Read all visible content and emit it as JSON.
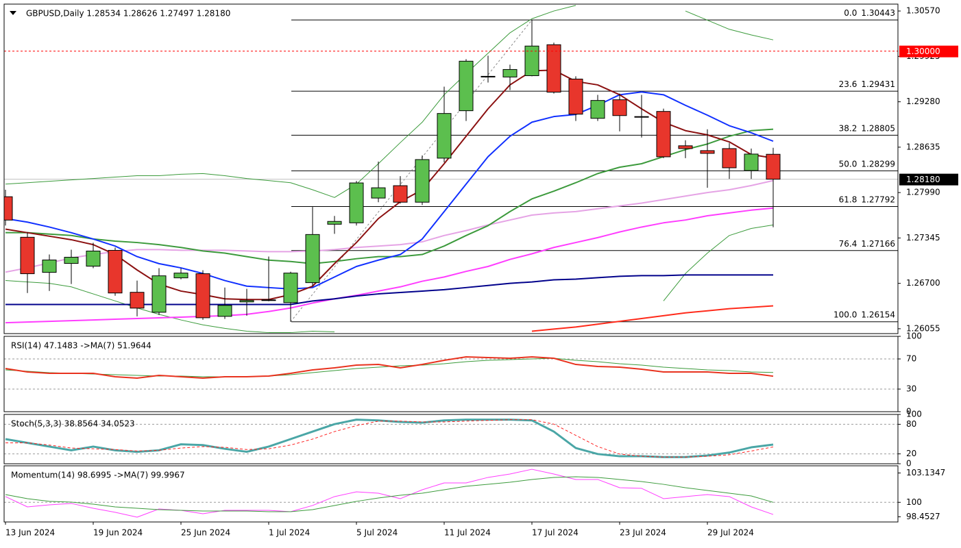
{
  "chart_data": [
    {
      "type": "candlestick",
      "title": "GBPUSD,Daily  1.28534 1.28626 1.27497 1.28180",
      "categories": [
        "13 Jun 2024",
        null,
        null,
        null,
        "19 Jun 2024",
        null,
        null,
        null,
        "25 Jun 2024",
        null,
        null,
        null,
        "1 Jul 2024",
        null,
        null,
        null,
        "5 Jul 2024",
        null,
        null,
        null,
        "11 Jul 2024",
        null,
        null,
        null,
        "17 Jul 2024",
        null,
        null,
        null,
        "23 Jul 2024",
        null,
        null,
        null,
        "29 Jul 2024",
        null,
        null,
        null
      ],
      "open": [
        1.27931,
        1.27355,
        1.26856,
        1.26983,
        1.26944,
        1.27169,
        1.26573,
        1.26289,
        1.26778,
        1.26837,
        1.26231,
        1.26436,
        1.26456,
        1.26426,
        1.2671,
        1.2754,
        1.2756,
        1.27912,
        1.28088,
        1.27853,
        1.28479,
        1.29153,
        1.29632,
        1.29632,
        1.29651,
        1.30091,
        1.29603,
        1.29045,
        1.29309,
        1.2907,
        1.29143,
        1.28655,
        1.28586,
        1.28615,
        1.28303,
        1.28534
      ],
      "high": [
        1.2803,
        1.27423,
        1.2711,
        1.27179,
        1.27277,
        1.27208,
        1.26739,
        1.26915,
        1.26915,
        1.26886,
        1.26641,
        1.26622,
        1.27081,
        1.26866,
        1.27785,
        1.27658,
        1.28156,
        1.2843,
        1.28224,
        1.28518,
        1.29495,
        1.29886,
        1.29935,
        1.29808,
        1.30443,
        1.3012,
        1.29642,
        1.29378,
        1.29397,
        1.29378,
        1.29182,
        1.28733,
        1.28889,
        1.28694,
        1.28615,
        1.28626
      ],
      "low": [
        1.27521,
        1.26563,
        1.26592,
        1.2669,
        1.26915,
        1.26524,
        1.26231,
        1.2625,
        1.26758,
        1.26182,
        1.26194,
        1.2624,
        1.26446,
        1.26154,
        1.26661,
        1.27403,
        1.27521,
        1.27853,
        1.27834,
        1.27814,
        1.2842,
        1.29007,
        1.29554,
        1.29446,
        1.29642,
        1.29397,
        1.29007,
        1.29007,
        1.2886,
        1.28772,
        1.28479,
        1.28479,
        1.28058,
        1.28185,
        1.28185,
        1.27497
      ],
      "close": [
        1.27599,
        1.26837,
        1.27032,
        1.27071,
        1.27159,
        1.26563,
        1.26348,
        1.26807,
        1.26846,
        1.26211,
        1.26387,
        1.26456,
        1.26465,
        1.26846,
        1.27394,
        1.2758,
        1.28127,
        1.28058,
        1.27853,
        1.28459,
        1.29114,
        1.29857,
        1.29642,
        1.29739,
        1.30072,
        1.29417,
        1.29104,
        1.29299,
        1.29084,
        1.2906,
        1.28498,
        1.28615,
        1.28547,
        1.28342,
        1.28537,
        1.2818
      ],
      "up_color": "#5cbf4e",
      "down_color": "#e8362c",
      "series": [
        {
          "color": "#3a9a3a",
          "width": 1,
          "values": [
            1.2811,
            1.2813,
            1.2815,
            1.2817,
            1.2819,
            1.2821,
            1.2823,
            1.2823,
            1.2825,
            1.2826,
            1.2823,
            1.2819,
            1.2816,
            1.2813,
            1.2803,
            1.2792,
            1.2811,
            1.284,
            1.287,
            1.2899,
            1.2938,
            1.2968,
            1.2997,
            1.3026,
            1.3046,
            1.3057,
            1.3065,
            null,
            null,
            null,
            null,
            1.3057,
            1.3044,
            1.3031,
            1.3023,
            1.3016
          ]
        },
        {
          "color": "#3a9a3a",
          "width": 1,
          "values": [
            1.2674,
            1.2672,
            1.267,
            1.2665,
            1.2655,
            1.2645,
            1.2635,
            1.2626,
            1.2618,
            1.2611,
            1.2606,
            1.2602,
            1.26,
            1.26,
            1.2602,
            1.2601,
            null,
            null,
            null,
            null,
            null,
            null,
            null,
            null,
            null,
            null,
            null,
            null,
            null,
            null,
            1.2645,
            1.2684,
            1.2713,
            1.2738,
            1.2748,
            1.2753
          ]
        },
        {
          "color": "#e5a3e5",
          "width": 2,
          "values": [
            1.2686,
            1.2692,
            1.2699,
            1.2706,
            1.2711,
            1.2715,
            1.2718,
            1.2718,
            1.2717,
            1.2717,
            1.2717,
            1.2716,
            1.2715,
            1.2715,
            1.2716,
            1.2718,
            1.2721,
            1.2723,
            1.2725,
            1.2729,
            1.2738,
            1.2745,
            1.2753,
            1.276,
            1.2767,
            1.277,
            1.2772,
            1.2776,
            1.278,
            1.2784,
            1.2789,
            1.2794,
            1.2799,
            1.2803,
            1.2809,
            1.2816
          ]
        },
        {
          "color": "#ff3cff",
          "width": 2,
          "values": [
            1.2614,
            1.2615,
            1.2616,
            1.2617,
            1.2618,
            1.2619,
            1.262,
            1.2621,
            1.2622,
            1.2623,
            1.2624,
            1.2626,
            1.263,
            1.2635,
            1.2642,
            1.2648,
            1.2653,
            1.2659,
            1.2665,
            1.2673,
            1.2679,
            1.2687,
            1.2694,
            1.2704,
            1.2712,
            1.2721,
            1.2728,
            1.2735,
            1.2743,
            1.275,
            1.2756,
            1.276,
            1.2766,
            1.277,
            1.2774,
            1.2777
          ]
        },
        {
          "color": "#00008b",
          "width": 2,
          "values": [
            1.264,
            1.264,
            1.264,
            1.264,
            1.264,
            1.264,
            1.264,
            1.264,
            1.264,
            1.264,
            1.264,
            1.264,
            1.264,
            1.264,
            1.2645,
            1.2648,
            1.2652,
            1.2655,
            1.2657,
            1.2659,
            1.2661,
            1.2664,
            1.2667,
            1.267,
            1.2672,
            1.2675,
            1.2676,
            1.2678,
            1.268,
            1.2681,
            1.2681,
            1.2682,
            1.2682,
            1.2682,
            1.2682,
            1.2682
          ]
        },
        {
          "color": "#ff2a1a",
          "width": 2,
          "values": [
            null,
            null,
            null,
            null,
            null,
            null,
            null,
            null,
            null,
            null,
            null,
            null,
            null,
            null,
            null,
            null,
            null,
            null,
            null,
            null,
            null,
            null,
            null,
            null,
            1.2602,
            1.2605,
            1.2608,
            1.2612,
            1.2616,
            1.262,
            1.2624,
            1.2628,
            1.2631,
            1.2634,
            1.2636,
            1.2638
          ]
        },
        {
          "color": "#3c9a3c",
          "width": 2,
          "values": [
            1.2742,
            1.2742,
            1.274,
            1.2738,
            1.2733,
            1.273,
            1.2728,
            1.2725,
            1.2721,
            1.2716,
            1.2713,
            1.2708,
            1.2703,
            1.2701,
            1.2698,
            1.2701,
            1.2705,
            1.2708,
            1.2708,
            1.2711,
            1.2723,
            1.2738,
            1.2752,
            1.2772,
            1.279,
            1.2801,
            1.2813,
            1.2826,
            1.2835,
            1.284,
            1.285,
            1.286,
            1.2868,
            1.2879,
            1.2887,
            1.2889
          ]
        },
        {
          "color": "#1030ff",
          "width": 2,
          "values": [
            1.2762,
            1.2757,
            1.275,
            1.2742,
            1.2733,
            1.2723,
            1.2708,
            1.2698,
            1.2692,
            1.2684,
            1.2674,
            1.2666,
            1.2664,
            1.2662,
            1.2664,
            1.2679,
            1.2694,
            1.2703,
            1.2711,
            1.2733,
            1.2772,
            1.2811,
            1.285,
            1.2879,
            1.2899,
            1.2907,
            1.291,
            1.2923,
            1.2938,
            1.2942,
            1.2938,
            1.2923,
            1.2909,
            1.2894,
            1.2884,
            1.2872
          ]
        },
        {
          "color": "#8b1010",
          "width": 2,
          "values": [
            1.2747,
            1.2742,
            1.2737,
            1.2732,
            1.2725,
            1.2711,
            1.2689,
            1.2669,
            1.2659,
            1.2654,
            1.2648,
            1.2647,
            1.2647,
            1.2654,
            1.2666,
            1.2698,
            1.2728,
            1.2762,
            1.2786,
            1.2803,
            1.284,
            1.2879,
            1.2918,
            1.2952,
            1.2972,
            1.2973,
            1.2957,
            1.2952,
            1.2938,
            1.2918,
            1.2899,
            1.2887,
            1.2881,
            1.2871,
            1.2853,
            1.2848
          ]
        }
      ],
      "fibonacci": [
        {
          "level": "0.0",
          "price": 1.30443
        },
        {
          "level": "23.6",
          "price": 1.29431
        },
        {
          "level": "38.2",
          "price": 1.28805
        },
        {
          "level": "50.0",
          "price": 1.28299
        },
        {
          "level": "61.8",
          "price": 1.27792
        },
        {
          "level": "76.4",
          "price": 1.27166
        },
        {
          "level": "100.0",
          "price": 1.26154
        }
      ],
      "price_level": {
        "value": 1.3,
        "label": "1.30000",
        "color": "#ff0000"
      },
      "last_price": {
        "value": 1.2818,
        "label": "1.28180"
      },
      "ylim": [
        1.25986,
        1.30668
      ],
      "yticks": [
        {
          "value": 1.3057,
          "label": "1.30570"
        },
        1.29925,
        {
          "value": 1.2928,
          "label": "1.29280"
        },
        1.28635,
        {
          "value": 1.2799,
          "label": "1.27990"
        },
        1.27345,
        {
          "value": 1.267,
          "label": "1.26700"
        },
        1.26055
      ]
    },
    {
      "type": "line",
      "title": "RSI(14) 47.1483 ->MA(7) 51.9644",
      "ylim": [
        0,
        100
      ],
      "yticks": [
        0,
        30,
        70,
        100
      ],
      "levels": [
        30,
        70
      ],
      "series": [
        {
          "color": "#3a9a3a",
          "width": 1,
          "values": [
            55.5,
            53.6,
            51.8,
            50.9,
            50.0,
            49.1,
            48.2,
            47.3,
            47.3,
            46.4,
            46.4,
            46.4,
            47.3,
            49.1,
            51.8,
            54.5,
            57.3,
            59.1,
            60.9,
            61.8,
            63.6,
            66.4,
            68.2,
            69.1,
            70.0,
            70.9,
            68.2,
            66.4,
            63.6,
            61.8,
            59.1,
            57.3,
            55.5,
            54.5,
            52.7,
            52.0
          ]
        },
        {
          "color": "#e8321e",
          "width": 2,
          "values": [
            57.3,
            52.7,
            50.9,
            50.9,
            50.9,
            46.4,
            44.5,
            48.2,
            46.4,
            44.5,
            46.4,
            46.4,
            47.3,
            50.9,
            55.5,
            58.2,
            61.8,
            62.7,
            58.2,
            62.7,
            68.2,
            72.7,
            71.8,
            70.9,
            72.7,
            70.9,
            62.7,
            60.0,
            59.1,
            56.4,
            52.7,
            52.7,
            52.7,
            50.9,
            50.9,
            47.1
          ]
        }
      ]
    },
    {
      "type": "line",
      "title": "Stoch(5,3,3) 38.8564 34.0523",
      "ylim": [
        0,
        100
      ],
      "yticks": [
        0,
        20,
        80,
        100
      ],
      "levels": [
        20,
        80
      ],
      "series": [
        {
          "color": "#4aa6a6",
          "width": 3,
          "values": [
            50.0,
            42.4,
            34.8,
            27.3,
            34.8,
            27.3,
            24.2,
            27.3,
            39.4,
            37.9,
            30.3,
            24.2,
            34.8,
            50.0,
            65.2,
            80.3,
            89.4,
            87.9,
            84.8,
            83.3,
            87.9,
            89.4,
            89.4,
            89.4,
            87.9,
            65.2,
            31.8,
            19.7,
            15.2,
            15.2,
            13.6,
            13.6,
            16.7,
            22.7,
            33.3,
            38.9
          ]
        },
        {
          "color": "#ff2020",
          "width": 1,
          "style": "dashed",
          "values": [
            42.4,
            42.4,
            37.9,
            31.8,
            30.3,
            28.8,
            25.8,
            27.3,
            31.8,
            34.8,
            33.3,
            28.8,
            30.3,
            37.9,
            50.0,
            65.2,
            77.3,
            86.4,
            86.4,
            84.8,
            84.8,
            86.4,
            87.9,
            89.4,
            89.4,
            80.3,
            57.6,
            34.8,
            19.7,
            15.2,
            13.6,
            13.6,
            15.2,
            18.2,
            25.8,
            34.1
          ]
        }
      ]
    },
    {
      "type": "line",
      "title": "Momentum(14) 98.6995 ->MA(7) 99.9967",
      "ylim": [
        97.9,
        103.9
      ],
      "yticks": [
        103.1347,
        100,
        98.4527
      ],
      "levels": [
        100
      ],
      "series": [
        {
          "color": "#ff3cff",
          "width": 1,
          "values": [
            100.61,
            99.51,
            99.73,
            99.88,
            99.36,
            98.93,
            98.41,
            99.29,
            99.14,
            98.78,
            99.14,
            99.14,
            99.14,
            99.0,
            99.66,
            100.61,
            101.12,
            100.97,
            100.39,
            101.34,
            102.07,
            102.07,
            102.66,
            103.02,
            103.53,
            103.02,
            102.44,
            102.44,
            101.56,
            101.49,
            100.39,
            100.61,
            100.83,
            100.61,
            99.51,
            98.7
          ]
        },
        {
          "color": "#3a9a3a",
          "width": 1,
          "values": [
            100.83,
            100.39,
            100.1,
            100.02,
            99.8,
            99.51,
            99.36,
            99.22,
            99.14,
            99.07,
            99.07,
            99.07,
            99.0,
            99.0,
            99.22,
            99.66,
            100.1,
            100.46,
            100.75,
            100.97,
            101.34,
            101.71,
            101.92,
            102.14,
            102.44,
            102.66,
            102.73,
            102.66,
            102.44,
            102.22,
            101.92,
            101.56,
            101.27,
            100.97,
            100.68,
            100.0
          ]
        }
      ]
    }
  ]
}
